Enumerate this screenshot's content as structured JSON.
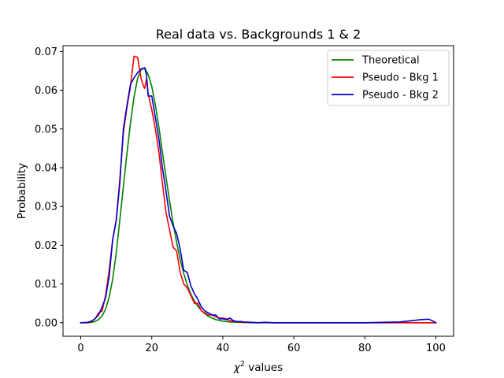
{
  "chart_data": {
    "type": "line",
    "title": "Real data vs. Backgrounds 1 & 2",
    "xlabel_symbol": "χ",
    "xlabel_sup": "2",
    "xlabel_text": " values",
    "ylabel": "Probability",
    "xlim": [
      -5,
      105
    ],
    "ylim": [
      -0.0035,
      0.0715
    ],
    "xticks": [
      0,
      20,
      40,
      60,
      80,
      100
    ],
    "yticks": [
      0.0,
      0.01,
      0.02,
      0.03,
      0.04,
      0.05,
      0.06,
      0.07
    ],
    "ytick_labels": [
      "0.00",
      "0.01",
      "0.02",
      "0.03",
      "0.04",
      "0.05",
      "0.06",
      "0.07"
    ],
    "grid": false,
    "legend_position": "top-right",
    "series": [
      {
        "name": "Theoretical",
        "color": "#008000",
        "x": [
          0,
          1,
          2,
          3,
          4,
          5,
          6,
          7,
          8,
          9,
          10,
          11,
          12,
          13,
          14,
          15,
          16,
          17,
          18,
          19,
          20,
          21,
          22,
          23,
          24,
          25,
          26,
          27,
          28,
          29,
          30,
          31,
          32,
          33,
          34,
          35,
          36,
          37,
          38,
          39,
          40,
          42,
          44,
          46,
          48,
          50,
          55,
          60,
          70,
          80,
          90,
          100
        ],
        "y": [
          0,
          0,
          0,
          0.0001,
          0.0003,
          0.0008,
          0.0017,
          0.0035,
          0.0066,
          0.0113,
          0.018,
          0.0265,
          0.0351,
          0.0436,
          0.0515,
          0.0582,
          0.063,
          0.0653,
          0.0658,
          0.064,
          0.061,
          0.0562,
          0.0505,
          0.044,
          0.0376,
          0.0315,
          0.0258,
          0.0207,
          0.0163,
          0.0127,
          0.0097,
          0.0074,
          0.0056,
          0.0042,
          0.0031,
          0.0023,
          0.0016,
          0.0012,
          0.0008,
          0.0006,
          0.0004,
          0.0002,
          0.0001,
          5e-05,
          0,
          0,
          0,
          0,
          0,
          0,
          0,
          0
        ]
      },
      {
        "name": "Pseudo - Bkg 1",
        "color": "#ff0000",
        "x": [
          0,
          2,
          3,
          4,
          5,
          6,
          7,
          8,
          9,
          10,
          11,
          12,
          13,
          14,
          15,
          16,
          17,
          17.5,
          18,
          18.5,
          19,
          20,
          21,
          22,
          23,
          24,
          25,
          26,
          27,
          28,
          29,
          30,
          31,
          32,
          33,
          34,
          35,
          36,
          37,
          38,
          39,
          40,
          41,
          42,
          43,
          44,
          45,
          46,
          48,
          50,
          52,
          54,
          56,
          58,
          60,
          65,
          70,
          80,
          90,
          95,
          100
        ],
        "y": [
          0,
          0,
          0.0003,
          0.001,
          0.0025,
          0.003,
          0.007,
          0.0135,
          0.0215,
          0.0265,
          0.037,
          0.049,
          0.0555,
          0.061,
          0.0688,
          0.0685,
          0.063,
          0.0615,
          0.0605,
          0.0628,
          0.059,
          0.055,
          0.05,
          0.044,
          0.036,
          0.0285,
          0.024,
          0.0195,
          0.0185,
          0.013,
          0.01,
          0.009,
          0.007,
          0.005,
          0.005,
          0.003,
          0.0025,
          0.002,
          0.002,
          0.0015,
          0.0012,
          0.0012,
          0.001,
          0.0005,
          0.0003,
          0.0003,
          0.0002,
          0.0001,
          0.0001,
          0,
          0.0001,
          0,
          0,
          0,
          0,
          0,
          0,
          0,
          0,
          0,
          0
        ]
      },
      {
        "name": "Pseudo - Bkg 2",
        "color": "#0000cc",
        "x": [
          0,
          2,
          3,
          4,
          5,
          6,
          7,
          8,
          9,
          10,
          11,
          12,
          13,
          14,
          15,
          16,
          17,
          18,
          18.5,
          19,
          20,
          21,
          22,
          23,
          24,
          25,
          26,
          27,
          28,
          29,
          30,
          31,
          32,
          33,
          34,
          35,
          36,
          37,
          38,
          39,
          40,
          41,
          42,
          43,
          44,
          45,
          46,
          48,
          50,
          52,
          54,
          56,
          58,
          60,
          65,
          70,
          80,
          85,
          90,
          92,
          94,
          96,
          98,
          99,
          100
        ],
        "y": [
          0,
          0.0001,
          0.0004,
          0.001,
          0.002,
          0.004,
          0.0065,
          0.012,
          0.0215,
          0.0265,
          0.036,
          0.05,
          0.056,
          0.0615,
          0.0632,
          0.0645,
          0.0655,
          0.0658,
          0.064,
          0.0585,
          0.0585,
          0.053,
          0.0475,
          0.04,
          0.034,
          0.0275,
          0.025,
          0.023,
          0.019,
          0.0135,
          0.013,
          0.0095,
          0.0075,
          0.006,
          0.004,
          0.003,
          0.0025,
          0.002,
          0.002,
          0.001,
          0.001,
          0.0008,
          0.0012,
          0.0005,
          0.0003,
          0.0003,
          0.0002,
          0.0001,
          0,
          0.0001,
          0,
          0,
          0,
          0,
          0,
          0,
          0,
          0.0001,
          0.0002,
          0.0004,
          0.0006,
          0.0008,
          0.0009,
          0.0005,
          0
        ]
      }
    ]
  }
}
